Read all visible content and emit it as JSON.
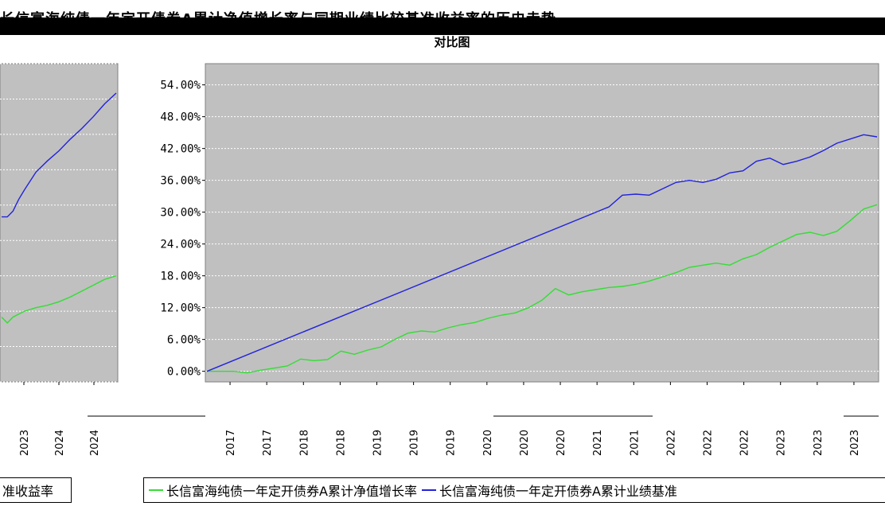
{
  "title": {
    "line1": "长信富海纯债一年定开债券A累计净值增长率与同期业绩比较基准收益率的历史走势",
    "line2": "对比图"
  },
  "colors": {
    "fund": "#33dd33",
    "benchmark": "#2222dd",
    "plot_bg": "#c0c0c0",
    "grid": "#ffffff"
  },
  "legend": {
    "left_fragment": "准收益率",
    "items": [
      {
        "label": "长信富海纯债一年定开债券A累计净值增长率",
        "color": "#33dd33"
      },
      {
        "label": "长信富海纯债一年定开债券A累计业绩基准",
        "color": "#2222dd"
      }
    ]
  },
  "chart_data": [
    {
      "type": "line",
      "panel": "left-cropped",
      "title": "",
      "xlabel": "",
      "ylabel": "",
      "x_ticks": [
        "2023",
        "2024",
        "2024"
      ],
      "series": [
        {
          "name": "长信富海纯债一年定开债券A累计净值增长率",
          "x": [
            0,
            0.05,
            0.1,
            0.2,
            0.3,
            0.4,
            0.5,
            0.6,
            0.7,
            0.8,
            0.9,
            1.0
          ],
          "values": [
            11.0,
            10.0,
            11.0,
            12.0,
            12.6,
            13.0,
            13.6,
            14.4,
            15.4,
            16.4,
            17.4,
            18.0
          ]
        },
        {
          "name": "长信富海纯债一年定开债券A累计业绩基准",
          "x": [
            0,
            0.05,
            0.1,
            0.15,
            0.2,
            0.3,
            0.4,
            0.5,
            0.6,
            0.7,
            0.8,
            0.9,
            1.0
          ],
          "values": [
            28.0,
            28.0,
            29.0,
            31.0,
            32.6,
            35.6,
            37.5,
            39.2,
            41.2,
            43.0,
            45.0,
            47.2,
            49.0
          ]
        }
      ],
      "ylim": [
        0,
        54
      ]
    },
    {
      "type": "line",
      "panel": "main",
      "title": "",
      "xlabel": "",
      "ylabel": "",
      "ylim": [
        -2,
        58
      ],
      "y_ticks": [
        "0.00%",
        "6.00%",
        "12.00%",
        "18.00%",
        "24.00%",
        "30.00%",
        "36.00%",
        "42.00%",
        "48.00%",
        "54.00%"
      ],
      "y_tick_values": [
        0,
        6,
        12,
        18,
        24,
        30,
        36,
        42,
        48,
        54
      ],
      "x_year_labels": [
        "2017",
        "2017",
        "2018",
        "2018",
        "2019",
        "2019",
        "2019",
        "2020",
        "2020",
        "2020",
        "2021",
        "2021",
        "2022",
        "2022",
        "2022",
        "2023",
        "2023",
        "2023"
      ],
      "series": [
        {
          "name": "长信富海纯债一年定开债券A累计净值增长率",
          "x": [
            0,
            0.04,
            0.06,
            0.08,
            0.1,
            0.12,
            0.14,
            0.16,
            0.18,
            0.2,
            0.22,
            0.24,
            0.26,
            0.28,
            0.3,
            0.32,
            0.34,
            0.36,
            0.38,
            0.4,
            0.42,
            0.44,
            0.46,
            0.48,
            0.5,
            0.52,
            0.54,
            0.56,
            0.58,
            0.6,
            0.62,
            0.64,
            0.66,
            0.68,
            0.7,
            0.72,
            0.74,
            0.76,
            0.78,
            0.8,
            0.82,
            0.84,
            0.86,
            0.88,
            0.9,
            0.92,
            0.94,
            0.96,
            0.98,
            1.0
          ],
          "values": [
            0,
            0,
            -0.3,
            0.2,
            0.6,
            1.0,
            2.3,
            2.0,
            2.2,
            3.8,
            3.2,
            4.0,
            4.6,
            6.0,
            7.2,
            7.6,
            7.4,
            8.2,
            8.8,
            9.2,
            10.0,
            10.6,
            11.0,
            12.0,
            13.4,
            15.6,
            14.4,
            15.0,
            15.4,
            15.8,
            16.0,
            16.4,
            17.0,
            17.8,
            18.6,
            19.6,
            20.0,
            20.4,
            20.0,
            21.2,
            22.0,
            23.4,
            24.6,
            25.8,
            26.2,
            25.6,
            26.4,
            28.4,
            30.6,
            31.4
          ]
        },
        {
          "name": "长信富海纯债一年定开债券A累计业绩基准",
          "x": [
            0,
            0.6,
            0.62,
            0.64,
            0.66,
            0.68,
            0.7,
            0.72,
            0.74,
            0.76,
            0.78,
            0.8,
            0.82,
            0.84,
            0.86,
            0.88,
            0.9,
            0.92,
            0.94,
            0.96,
            0.98,
            1.0
          ],
          "values": [
            0,
            31.0,
            33.2,
            33.4,
            33.2,
            34.4,
            35.6,
            36.0,
            35.6,
            36.2,
            37.4,
            37.8,
            39.6,
            40.2,
            39.0,
            39.6,
            40.4,
            41.6,
            43.0,
            43.8,
            44.6,
            44.2
          ]
        }
      ]
    }
  ]
}
